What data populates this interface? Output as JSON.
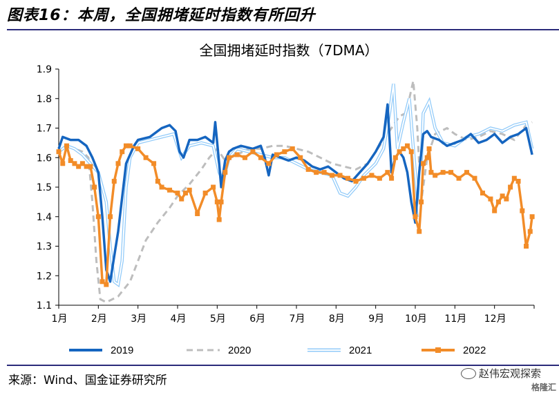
{
  "header": {
    "figure_title": "图表16：本周，全国拥堵延时指数有所回升"
  },
  "footer": {
    "source": "来源：Wind、国金证券研究所",
    "watermark": "赵伟宏观探索",
    "watermark_sub": "格隆汇"
  },
  "colors": {
    "s2019": "#1565c0",
    "s2020": "#bdbdbd",
    "s2021_outer": "#90caf9",
    "s2021_inner": "#ffffff",
    "s2022": "#f28c28",
    "rule": "#2a2a7a"
  },
  "chart_data": {
    "type": "line",
    "title": "全国拥堵延时指数（7DMA）",
    "xlabel": "",
    "ylabel": "",
    "ylim": [
      1.1,
      1.9
    ],
    "yticks": [
      "1.1",
      "1.2",
      "1.3",
      "1.4",
      "1.5",
      "1.6",
      "1.7",
      "1.8",
      "1.9"
    ],
    "xlim": [
      1,
      13
    ],
    "xticks": [
      "1月",
      "2月",
      "3月",
      "4月",
      "5月",
      "6月",
      "7月",
      "8月",
      "9月",
      "10月",
      "11月",
      "12月"
    ],
    "legend": "bottom",
    "series": [
      {
        "name": "2019",
        "style": "solid",
        "x": [
          1.0,
          1.1,
          1.3,
          1.5,
          1.7,
          1.85,
          2.0,
          2.1,
          2.2,
          2.3,
          2.5,
          2.7,
          2.9,
          3.0,
          3.3,
          3.6,
          3.8,
          3.95,
          4.05,
          4.15,
          4.3,
          4.5,
          4.7,
          4.9,
          4.95,
          5.05,
          5.1,
          5.2,
          5.3,
          5.4,
          5.6,
          5.9,
          6.1,
          6.2,
          6.3,
          6.4,
          6.6,
          6.8,
          7.0,
          7.2,
          7.4,
          7.6,
          7.8,
          8.0,
          8.2,
          8.4,
          8.6,
          8.8,
          9.0,
          9.2,
          9.3,
          9.4,
          9.5,
          9.6,
          9.7,
          9.8,
          9.9,
          10.0,
          10.1,
          10.2,
          10.3,
          10.4,
          10.6,
          10.8,
          11.0,
          11.2,
          11.4,
          11.6,
          11.8,
          12.0,
          12.2,
          12.4,
          12.6,
          12.8,
          12.95
        ],
        "values": [
          1.63,
          1.67,
          1.66,
          1.66,
          1.64,
          1.6,
          1.55,
          1.4,
          1.22,
          1.18,
          1.35,
          1.58,
          1.64,
          1.66,
          1.67,
          1.7,
          1.71,
          1.69,
          1.62,
          1.6,
          1.66,
          1.66,
          1.67,
          1.65,
          1.72,
          1.58,
          1.5,
          1.59,
          1.62,
          1.63,
          1.64,
          1.63,
          1.64,
          1.6,
          1.54,
          1.61,
          1.6,
          1.59,
          1.6,
          1.59,
          1.57,
          1.56,
          1.57,
          1.55,
          1.53,
          1.52,
          1.55,
          1.58,
          1.62,
          1.67,
          1.78,
          1.55,
          1.6,
          1.62,
          1.6,
          1.55,
          1.45,
          1.38,
          1.55,
          1.68,
          1.69,
          1.67,
          1.66,
          1.64,
          1.65,
          1.66,
          1.68,
          1.65,
          1.66,
          1.68,
          1.65,
          1.67,
          1.68,
          1.7,
          1.61
        ]
      },
      {
        "name": "2020",
        "style": "dashed",
        "x": [
          1.0,
          1.2,
          1.4,
          1.6,
          1.75,
          1.85,
          1.95,
          2.05,
          2.2,
          2.5,
          2.8,
          3.0,
          3.2,
          3.5,
          3.8,
          4.0,
          4.3,
          4.6,
          4.8,
          5.0,
          5.2,
          5.5,
          5.8,
          6.1,
          6.4,
          6.7,
          7.0,
          7.3,
          7.6,
          7.9,
          8.2,
          8.5,
          8.8,
          9.0,
          9.2,
          9.4,
          9.6,
          9.75,
          9.85,
          9.95,
          10.05,
          10.15,
          10.3,
          10.5,
          10.8,
          11.0,
          11.3,
          11.6,
          11.9,
          12.2,
          12.5,
          12.8,
          12.95
        ],
        "values": [
          1.62,
          1.64,
          1.63,
          1.62,
          1.6,
          1.45,
          1.25,
          1.12,
          1.11,
          1.13,
          1.18,
          1.25,
          1.32,
          1.38,
          1.43,
          1.47,
          1.51,
          1.56,
          1.6,
          1.63,
          1.59,
          1.61,
          1.63,
          1.63,
          1.64,
          1.64,
          1.63,
          1.62,
          1.6,
          1.58,
          1.57,
          1.56,
          1.58,
          1.62,
          1.66,
          1.7,
          1.74,
          1.75,
          1.8,
          1.86,
          1.7,
          1.45,
          1.6,
          1.68,
          1.7,
          1.68,
          1.66,
          1.67,
          1.69,
          1.68,
          1.66,
          1.71,
          1.72
        ]
      },
      {
        "name": "2021",
        "style": "double",
        "x": [
          1.0,
          1.2,
          1.4,
          1.6,
          1.8,
          2.0,
          2.2,
          2.3,
          2.4,
          2.5,
          2.6,
          2.7,
          2.8,
          3.0,
          3.3,
          3.6,
          3.9,
          4.1,
          4.3,
          4.6,
          4.9,
          5.05,
          5.15,
          5.3,
          5.5,
          5.8,
          6.1,
          6.4,
          6.7,
          7.0,
          7.3,
          7.6,
          7.9,
          8.1,
          8.3,
          8.5,
          8.7,
          9.0,
          9.2,
          9.35,
          9.45,
          9.55,
          9.7,
          9.85,
          10.0,
          10.1,
          10.2,
          10.35,
          10.5,
          10.7,
          11.0,
          11.3,
          11.6,
          11.9,
          12.2,
          12.5,
          12.8,
          12.95
        ],
        "values": [
          1.62,
          1.64,
          1.63,
          1.61,
          1.58,
          1.55,
          1.45,
          1.3,
          1.18,
          1.17,
          1.25,
          1.5,
          1.6,
          1.65,
          1.66,
          1.67,
          1.68,
          1.6,
          1.64,
          1.65,
          1.64,
          1.55,
          1.52,
          1.6,
          1.63,
          1.62,
          1.61,
          1.6,
          1.6,
          1.58,
          1.56,
          1.55,
          1.54,
          1.48,
          1.47,
          1.5,
          1.54,
          1.58,
          1.63,
          1.75,
          1.85,
          1.63,
          1.72,
          1.8,
          1.55,
          1.4,
          1.75,
          1.79,
          1.7,
          1.65,
          1.64,
          1.67,
          1.68,
          1.7,
          1.69,
          1.71,
          1.72,
          1.63
        ]
      },
      {
        "name": "2022",
        "style": "square-markers",
        "x": [
          1.0,
          1.1,
          1.2,
          1.3,
          1.4,
          1.5,
          1.6,
          1.7,
          1.8,
          1.9,
          2.0,
          2.1,
          2.2,
          2.3,
          2.4,
          2.5,
          2.6,
          2.7,
          2.8,
          3.0,
          3.2,
          3.4,
          3.5,
          3.6,
          3.8,
          4.0,
          4.1,
          4.2,
          4.3,
          4.5,
          4.7,
          4.9,
          5.0,
          5.05,
          5.1,
          5.2,
          5.3,
          5.5,
          5.7,
          5.9,
          6.1,
          6.3,
          6.5,
          6.7,
          6.9,
          7.1,
          7.3,
          7.5,
          7.7,
          7.9,
          8.1,
          8.3,
          8.5,
          8.7,
          8.9,
          9.1,
          9.3,
          9.4,
          9.5,
          9.6,
          9.7,
          9.8,
          9.9,
          10.0,
          10.1,
          10.15,
          10.2,
          10.3,
          10.35,
          10.4,
          10.5,
          10.7,
          10.9,
          11.1,
          11.3,
          11.5,
          11.7,
          11.9,
          12.0,
          12.1,
          12.2,
          12.3,
          12.4,
          12.5,
          12.6,
          12.7,
          12.8,
          12.9,
          12.95
        ],
        "values": [
          1.62,
          1.58,
          1.64,
          1.59,
          1.58,
          1.57,
          1.58,
          1.57,
          1.57,
          1.5,
          1.4,
          1.18,
          1.17,
          1.4,
          1.52,
          1.58,
          1.62,
          1.64,
          1.64,
          1.63,
          1.6,
          1.58,
          1.52,
          1.5,
          1.49,
          1.48,
          1.46,
          1.48,
          1.49,
          1.41,
          1.48,
          1.5,
          1.45,
          1.39,
          1.45,
          1.55,
          1.6,
          1.61,
          1.6,
          1.62,
          1.6,
          1.58,
          1.61,
          1.62,
          1.63,
          1.6,
          1.56,
          1.55,
          1.55,
          1.54,
          1.54,
          1.53,
          1.52,
          1.53,
          1.54,
          1.53,
          1.55,
          1.53,
          1.6,
          1.62,
          1.63,
          1.64,
          1.62,
          1.4,
          1.35,
          1.45,
          1.58,
          1.6,
          1.63,
          1.55,
          1.54,
          1.55,
          1.55,
          1.53,
          1.55,
          1.53,
          1.48,
          1.46,
          1.42,
          1.45,
          1.47,
          1.46,
          1.5,
          1.53,
          1.52,
          1.42,
          1.3,
          1.35,
          1.4
        ]
      }
    ]
  }
}
